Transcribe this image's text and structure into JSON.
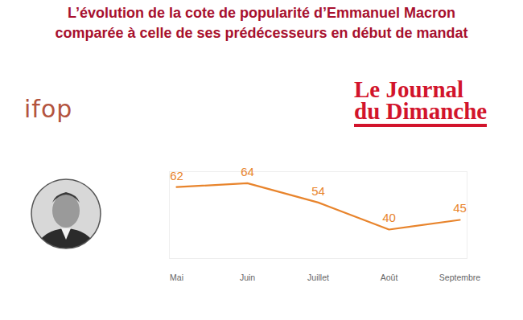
{
  "chart_data": {
    "type": "line",
    "title": "L’évolution de la cote de popularité d’Emmanuel Macron comparée à celle de ses prédécesseurs en début de mandat",
    "annotations": [
      "ifop",
      "Le Journal du Dimanche"
    ],
    "categories": [
      "Mai",
      "Juin",
      "Juillet",
      "Août",
      "Septembre"
    ],
    "values": [
      62,
      64,
      54,
      40,
      45
    ],
    "color": "#e8842c",
    "ylim": [
      25,
      70
    ],
    "yticks": [],
    "grid": false,
    "data_labels": true,
    "tick_labels": "x"
  }
}
